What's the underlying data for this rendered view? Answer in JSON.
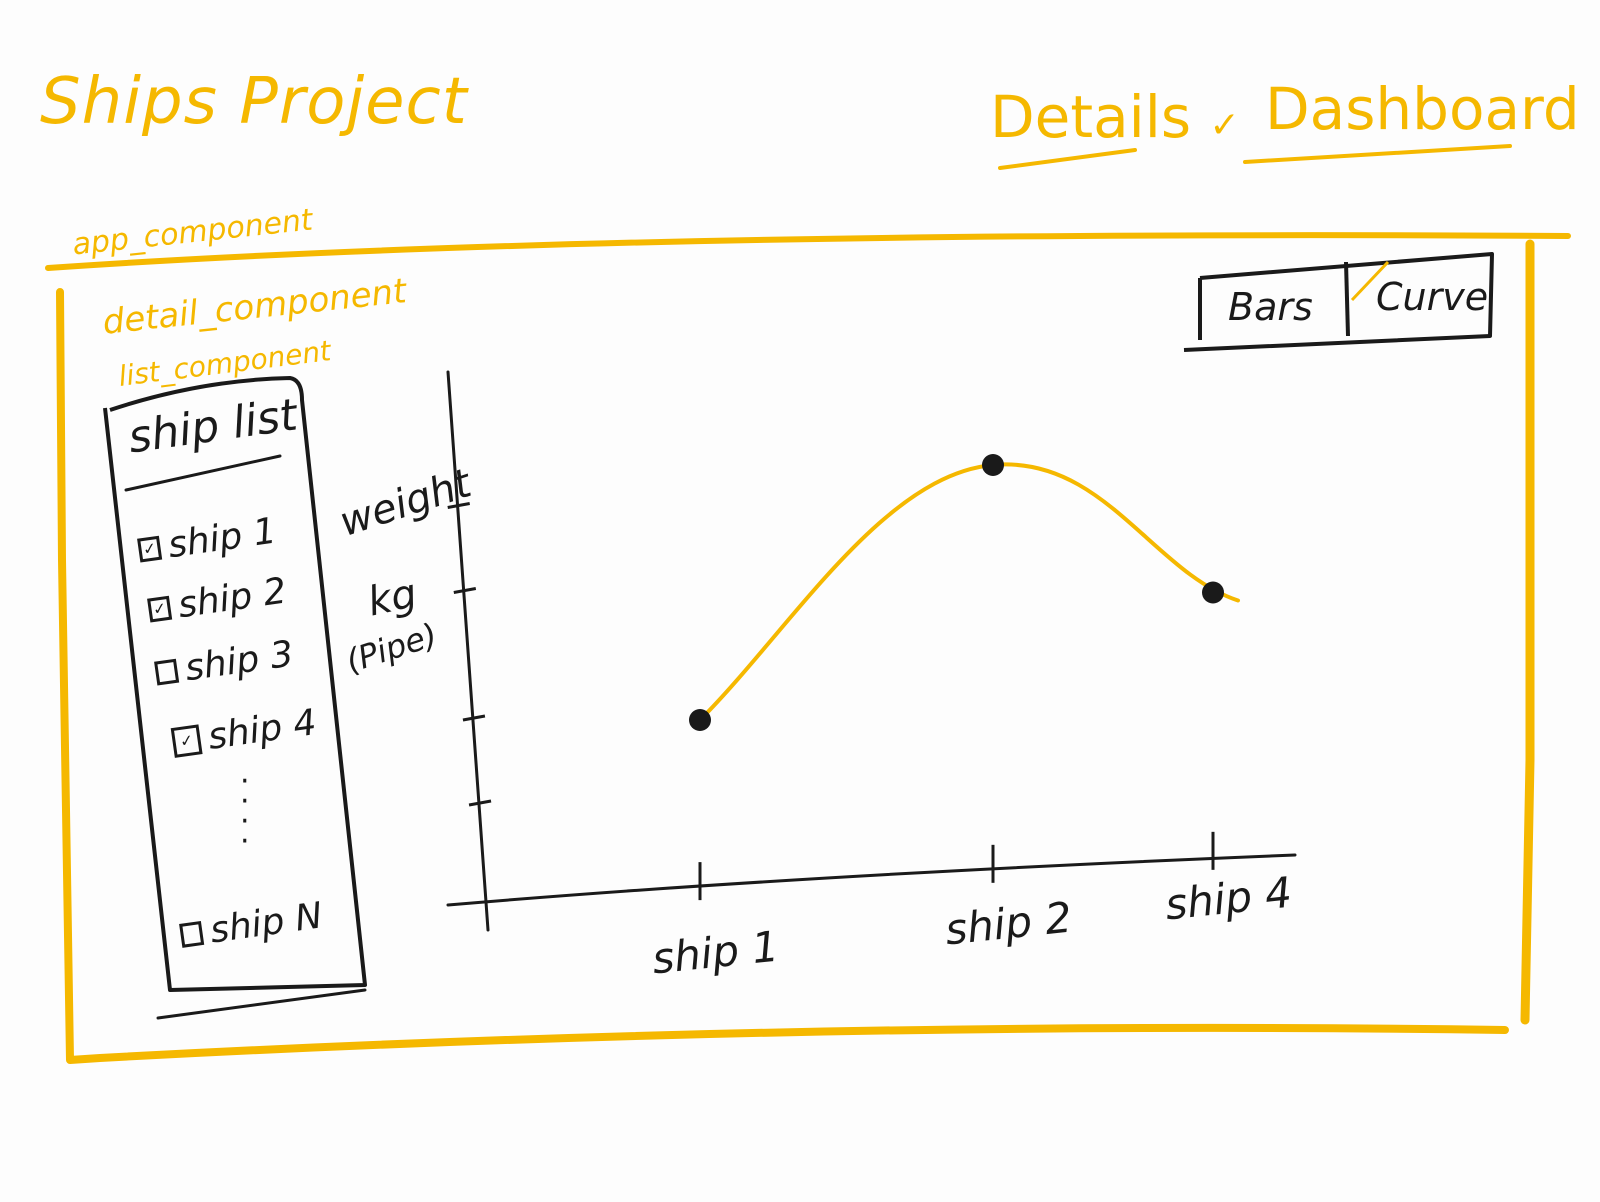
{
  "header": {
    "title": "Ships Project",
    "nav": [
      {
        "label": "Details",
        "mark": "✓"
      },
      {
        "label": "Dashboard"
      }
    ]
  },
  "components": {
    "app": "app_component",
    "detail": "detail_component",
    "list": "list_component"
  },
  "ship_list": {
    "title": "ship list",
    "items": [
      {
        "label": "ship 1",
        "checked": true
      },
      {
        "label": "ship 2",
        "checked": true
      },
      {
        "label": "ship 3",
        "checked": false
      },
      {
        "label": "ship 4",
        "checked": true
      },
      {
        "label": "ship N",
        "checked": false
      }
    ]
  },
  "toggle": {
    "options": [
      {
        "label": "Bars",
        "selected": false
      },
      {
        "label": "Curve",
        "selected": true,
        "mark": "✓"
      }
    ]
  },
  "colors": {
    "accent": "#f5b800",
    "ink": "#1a1a1a"
  },
  "chart_data": {
    "type": "line",
    "categories": [
      "ship 1",
      "ship 2",
      "ship 4"
    ],
    "values": [
      2,
      5,
      3.5
    ],
    "ylabel": [
      "weight",
      "kg",
      "(Pipe)"
    ],
    "ylim": [
      0,
      6
    ]
  }
}
